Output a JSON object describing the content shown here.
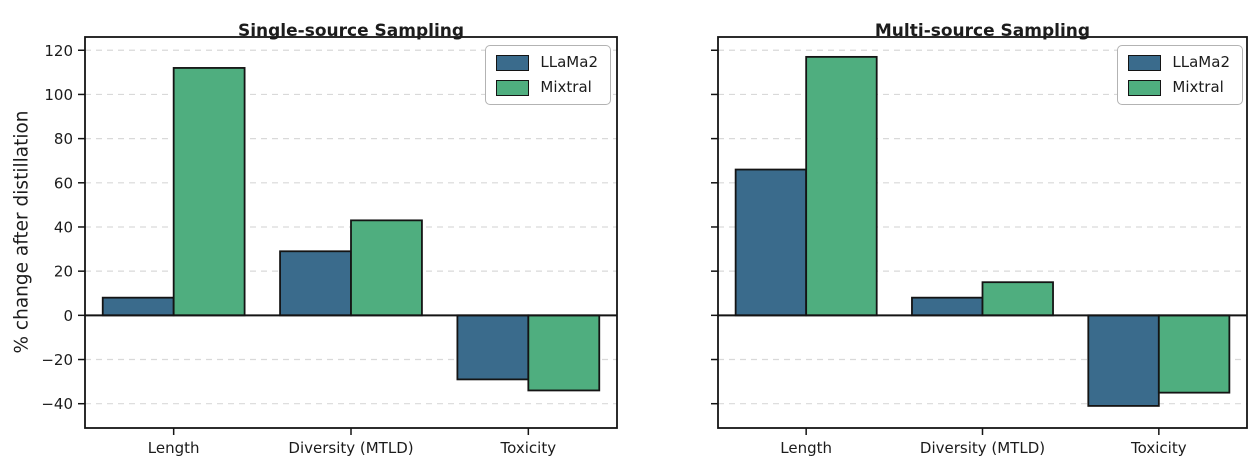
{
  "figure": {
    "background": "#ffffff",
    "axis_color": "#141414",
    "grid_color": "#d9d9d9",
    "text_color": "#1c1c1c"
  },
  "chart_data": [
    {
      "type": "bar",
      "title": "Single-source Sampling",
      "ylabel": "% change after distillation",
      "xlabel": "",
      "categories": [
        "Length",
        "Diversity (MTLD)",
        "Toxicity"
      ],
      "series": [
        {
          "name": "LLaMa2",
          "color": "#3a6b8c",
          "values": [
            8,
            29,
            -29
          ]
        },
        {
          "name": "Mixtral",
          "color": "#4fae7f",
          "values": [
            112,
            43,
            -34
          ]
        }
      ],
      "yticks": [
        120,
        100,
        80,
        60,
        40,
        20,
        0,
        -20,
        -40
      ],
      "ylim": [
        -51,
        126
      ],
      "show_ytick_labels": true,
      "grid": "dashed horizontal",
      "zero_line": true,
      "legend_position": "upper right"
    },
    {
      "type": "bar",
      "title": "Multi-source Sampling",
      "ylabel": "",
      "xlabel": "",
      "categories": [
        "Length",
        "Diversity (MTLD)",
        "Toxicity"
      ],
      "series": [
        {
          "name": "LLaMa2",
          "color": "#3a6b8c",
          "values": [
            66,
            8,
            -41
          ]
        },
        {
          "name": "Mixtral",
          "color": "#4fae7f",
          "values": [
            117,
            15,
            -35
          ]
        }
      ],
      "yticks": [
        120,
        100,
        80,
        60,
        40,
        20,
        0,
        -20,
        -40
      ],
      "ylim": [
        -51,
        126
      ],
      "show_ytick_labels": false,
      "grid": "dashed horizontal",
      "zero_line": true,
      "legend_position": "upper right"
    }
  ]
}
